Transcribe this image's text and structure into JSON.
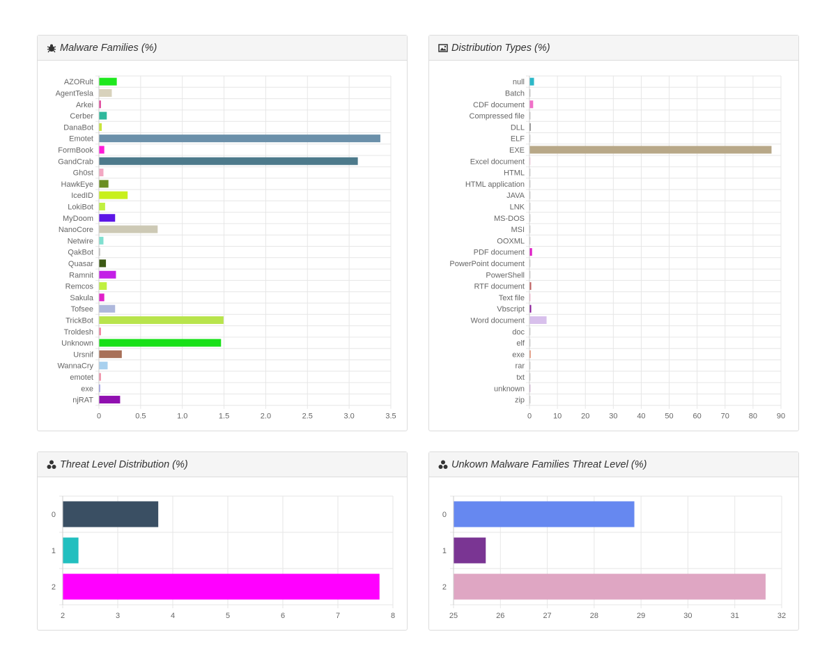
{
  "panels": [
    {
      "key": "malware",
      "title": "Malware Families (%)",
      "icon": "bug-icon"
    },
    {
      "key": "distribution",
      "title": "Distribution Types (%)",
      "icon": "image-icon"
    },
    {
      "key": "threat",
      "title": "Threat Level Distribution (%)",
      "icon": "hazard-icon"
    },
    {
      "key": "unknown",
      "title": "Unkown Malware Families Threat Level (%)",
      "icon": "hazard-icon"
    }
  ],
  "chart_data": [
    {
      "type": "bar",
      "orientation": "horizontal",
      "title": "Malware Families (%)",
      "categories": [
        "AZORult",
        "AgentTesla",
        "Arkei",
        "Cerber",
        "DanaBot",
        "Emotet",
        "FormBook",
        "GandCrab",
        "Gh0st",
        "HawkEye",
        "IcedID",
        "LokiBot",
        "MyDoom",
        "NanoCore",
        "Netwire",
        "QakBot",
        "Quasar",
        "Ramnit",
        "Remcos",
        "Sakula",
        "Tofsee",
        "TrickBot",
        "Troldesh",
        "Unknown",
        "Ursnif",
        "WannaCry",
        "emotet",
        "exe",
        "njRAT"
      ],
      "values": [
        0.21,
        0.15,
        0.02,
        0.09,
        0.03,
        3.37,
        0.06,
        3.1,
        0.05,
        0.11,
        0.34,
        0.07,
        0.19,
        0.7,
        0.05,
        0.01,
        0.08,
        0.2,
        0.09,
        0.06,
        0.19,
        1.49,
        0.02,
        1.46,
        0.27,
        0.1,
        0.02,
        0.01,
        0.25
      ],
      "colors": [
        "#1ee81e",
        "#d8d2bc",
        "#e0479c",
        "#2fb89c",
        "#c8e43c",
        "#6b90aa",
        "#ff1ad8",
        "#4d7a8b",
        "#f2a8c2",
        "#6b8e23",
        "#c8f01c",
        "#c0f040",
        "#5c16e6",
        "#cdc9b5",
        "#80e0d0",
        "#bbbbbb",
        "#3c5a14",
        "#c31fe6",
        "#c0f040",
        "#e020c8",
        "#aeb8dc",
        "#b8e44c",
        "#f080a0",
        "#18e018",
        "#a87058",
        "#a8d0ee",
        "#ee90a8",
        "#8888e0",
        "#9010b0"
      ],
      "xlim": [
        0,
        3.5
      ],
      "ticks": [
        0,
        0.5,
        1.0,
        1.5,
        2.0,
        2.5,
        3.0,
        3.5
      ],
      "tick_labels": [
        "0",
        "0.5",
        "1.0",
        "1.5",
        "2.0",
        "2.5",
        "3.0",
        "3.5"
      ]
    },
    {
      "type": "bar",
      "orientation": "horizontal",
      "title": "Distribution Types (%)",
      "categories": [
        "null",
        "Batch",
        "CDF document",
        "Compressed file",
        "DLL",
        "ELF",
        "EXE",
        "Excel document",
        "HTML",
        "HTML application",
        "JAVA",
        "LNK",
        "MS-DOS",
        "MSI",
        "OOXML",
        "PDF document",
        "PowerPoint document",
        "PowerShell",
        "RTF document",
        "Text file",
        "Vbscript",
        "Word document",
        "doc",
        "elf",
        "exe",
        "rar",
        "txt",
        "unknown",
        "zip"
      ],
      "values": [
        1.5,
        0.1,
        1.2,
        0.1,
        0.3,
        0.1,
        86.5,
        0.2,
        0.05,
        0.05,
        0.05,
        0.05,
        0.05,
        0.05,
        0.05,
        0.8,
        0.05,
        0.05,
        0.5,
        0.2,
        0.5,
        6.0,
        0.05,
        0.05,
        0.3,
        0.05,
        0.05,
        0.1,
        0.05
      ],
      "colors": [
        "#2cb8c8",
        "#b0b0b0",
        "#f070c8",
        "#b0b0b0",
        "#707070",
        "#c0c0c0",
        "#b8a888",
        "#f0c0d8",
        "#c0c0c0",
        "#c0c0c0",
        "#c0c0c0",
        "#c0c0c0",
        "#c0c0c0",
        "#c0c0c0",
        "#c0c0c0",
        "#e020c8",
        "#c0c0c0",
        "#c0c0c0",
        "#c06060",
        "#f0a0c0",
        "#8a1a9a",
        "#d8c0ec",
        "#c0c0c0",
        "#c0c0c0",
        "#e08060",
        "#c0c0c0",
        "#c0c0c0",
        "#c8a0c8",
        "#c0c0c0"
      ],
      "xlim": [
        0,
        90
      ],
      "ticks": [
        0,
        10,
        20,
        30,
        40,
        50,
        60,
        70,
        80,
        90
      ],
      "tick_labels": [
        "0",
        "10",
        "20",
        "30",
        "40",
        "50",
        "60",
        "70",
        "80",
        "90"
      ]
    },
    {
      "type": "bar",
      "orientation": "horizontal",
      "title": "Threat Level Distribution (%)",
      "categories": [
        "0",
        "1",
        "2"
      ],
      "values": [
        3.73,
        2.28,
        7.75
      ],
      "colors": [
        "#3a4f63",
        "#22bfbf",
        "#ff00ff"
      ],
      "xlim": [
        2,
        8
      ],
      "ticks": [
        2,
        3,
        4,
        5,
        6,
        7,
        8
      ],
      "tick_labels": [
        "2",
        "3",
        "4",
        "5",
        "6",
        "7",
        "8"
      ]
    },
    {
      "type": "bar",
      "orientation": "horizontal",
      "title": "Unkown Malware Families Threat Level (%)",
      "categories": [
        "0",
        "1",
        "2"
      ],
      "values": [
        28.85,
        25.68,
        31.65
      ],
      "colors": [
        "#6688f0",
        "#7a3593",
        "#dfa6c3"
      ],
      "xlim": [
        25,
        32
      ],
      "ticks": [
        25,
        26,
        27,
        28,
        29,
        30,
        31,
        32
      ],
      "tick_labels": [
        "25",
        "26",
        "27",
        "28",
        "29",
        "30",
        "31",
        "32"
      ]
    }
  ]
}
